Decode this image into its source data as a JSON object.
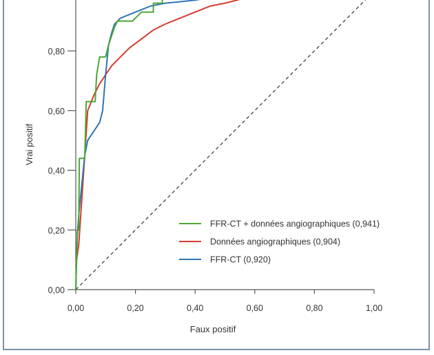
{
  "chart_data": {
    "type": "line",
    "xlabel": "Faux positif",
    "ylabel": "Vrai positif",
    "xlim": [
      0,
      1
    ],
    "ylim": [
      0,
      0.98
    ],
    "x_ticks": [
      "0,00",
      "0,20",
      "0,40",
      "0,60",
      "0,80",
      "1,00"
    ],
    "y_ticks": [
      "0,00",
      "0,20",
      "0,40",
      "0,60",
      "0,80"
    ],
    "x_tick_values": [
      0,
      0.2,
      0.4,
      0.6,
      0.8,
      1.0
    ],
    "y_tick_values": [
      0,
      0.2,
      0.4,
      0.6,
      0.8
    ],
    "legend_position": "lower-right",
    "diagonal": true,
    "series": [
      {
        "name": "FFR-CT + données angiographiques (0,941)",
        "color": "#4aa832",
        "step": true,
        "points": [
          [
            0,
            0
          ],
          [
            0.005,
            0.2
          ],
          [
            0.01,
            0.2
          ],
          [
            0.012,
            0.44
          ],
          [
            0.03,
            0.44
          ],
          [
            0.035,
            0.63
          ],
          [
            0.065,
            0.63
          ],
          [
            0.07,
            0.72
          ],
          [
            0.08,
            0.78
          ],
          [
            0.1,
            0.78
          ],
          [
            0.11,
            0.82
          ],
          [
            0.12,
            0.85
          ],
          [
            0.13,
            0.88
          ],
          [
            0.14,
            0.9
          ],
          [
            0.19,
            0.9
          ],
          [
            0.2,
            0.91
          ],
          [
            0.22,
            0.93
          ],
          [
            0.26,
            0.93
          ],
          [
            0.26,
            0.96
          ],
          [
            0.29,
            0.96
          ],
          [
            0.29,
            0.98
          ],
          [
            0.46,
            0.98
          ]
        ]
      },
      {
        "name": "Données angiographiques (0,904)",
        "color": "#d63a2f",
        "step": false,
        "points": [
          [
            0,
            0.08
          ],
          [
            0.01,
            0.15
          ],
          [
            0.02,
            0.3
          ],
          [
            0.03,
            0.45
          ],
          [
            0.04,
            0.6
          ],
          [
            0.06,
            0.65
          ],
          [
            0.08,
            0.69
          ],
          [
            0.1,
            0.72
          ],
          [
            0.12,
            0.75
          ],
          [
            0.15,
            0.78
          ],
          [
            0.18,
            0.81
          ],
          [
            0.22,
            0.84
          ],
          [
            0.26,
            0.87
          ],
          [
            0.3,
            0.89
          ],
          [
            0.35,
            0.91
          ],
          [
            0.4,
            0.93
          ],
          [
            0.45,
            0.95
          ],
          [
            0.5,
            0.96
          ],
          [
            0.54,
            0.97
          ],
          [
            0.57,
            0.98
          ]
        ]
      },
      {
        "name": "FFR-CT (0,920)",
        "color": "#2f74b5",
        "step": false,
        "points": [
          [
            0,
            0
          ],
          [
            0.005,
            0.18
          ],
          [
            0.01,
            0.25
          ],
          [
            0.02,
            0.35
          ],
          [
            0.03,
            0.45
          ],
          [
            0.04,
            0.5
          ],
          [
            0.06,
            0.53
          ],
          [
            0.08,
            0.56
          ],
          [
            0.09,
            0.6
          ],
          [
            0.1,
            0.72
          ],
          [
            0.11,
            0.82
          ],
          [
            0.12,
            0.86
          ],
          [
            0.13,
            0.89
          ],
          [
            0.15,
            0.91
          ],
          [
            0.2,
            0.93
          ],
          [
            0.25,
            0.95
          ],
          [
            0.3,
            0.96
          ],
          [
            0.4,
            0.97
          ],
          [
            0.46,
            0.98
          ]
        ]
      }
    ]
  }
}
